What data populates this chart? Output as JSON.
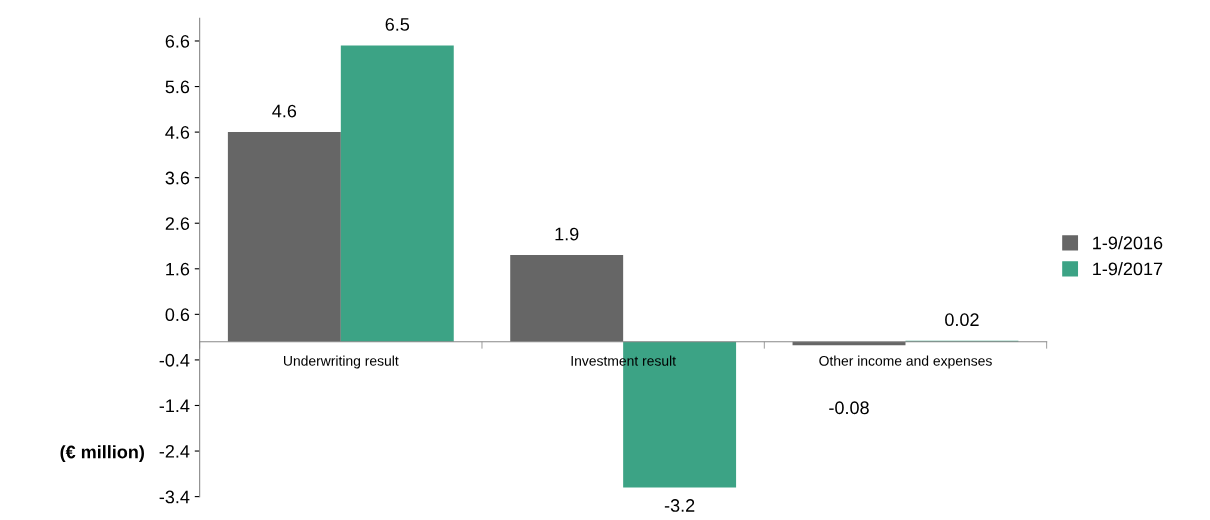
{
  "chart_data": {
    "type": "bar",
    "ylabel": "(€ million)",
    "categories": [
      "Underwriting result",
      "Investment result",
      "Other income and expenses"
    ],
    "series": [
      {
        "name": "1-9/2016",
        "color": "#666666",
        "values": [
          4.6,
          1.9,
          -0.08
        ]
      },
      {
        "name": "1-9/2017",
        "color": "#3ca385",
        "values": [
          6.5,
          -3.2,
          0.02
        ]
      }
    ],
    "ylim": [
      -3.4,
      7.1
    ],
    "yticks": [
      -3.4,
      -2.4,
      -1.4,
      -0.4,
      0.6,
      1.6,
      2.6,
      3.6,
      4.6,
      5.6,
      6.6
    ],
    "data_labels": true,
    "legend": "right",
    "grid": false
  }
}
